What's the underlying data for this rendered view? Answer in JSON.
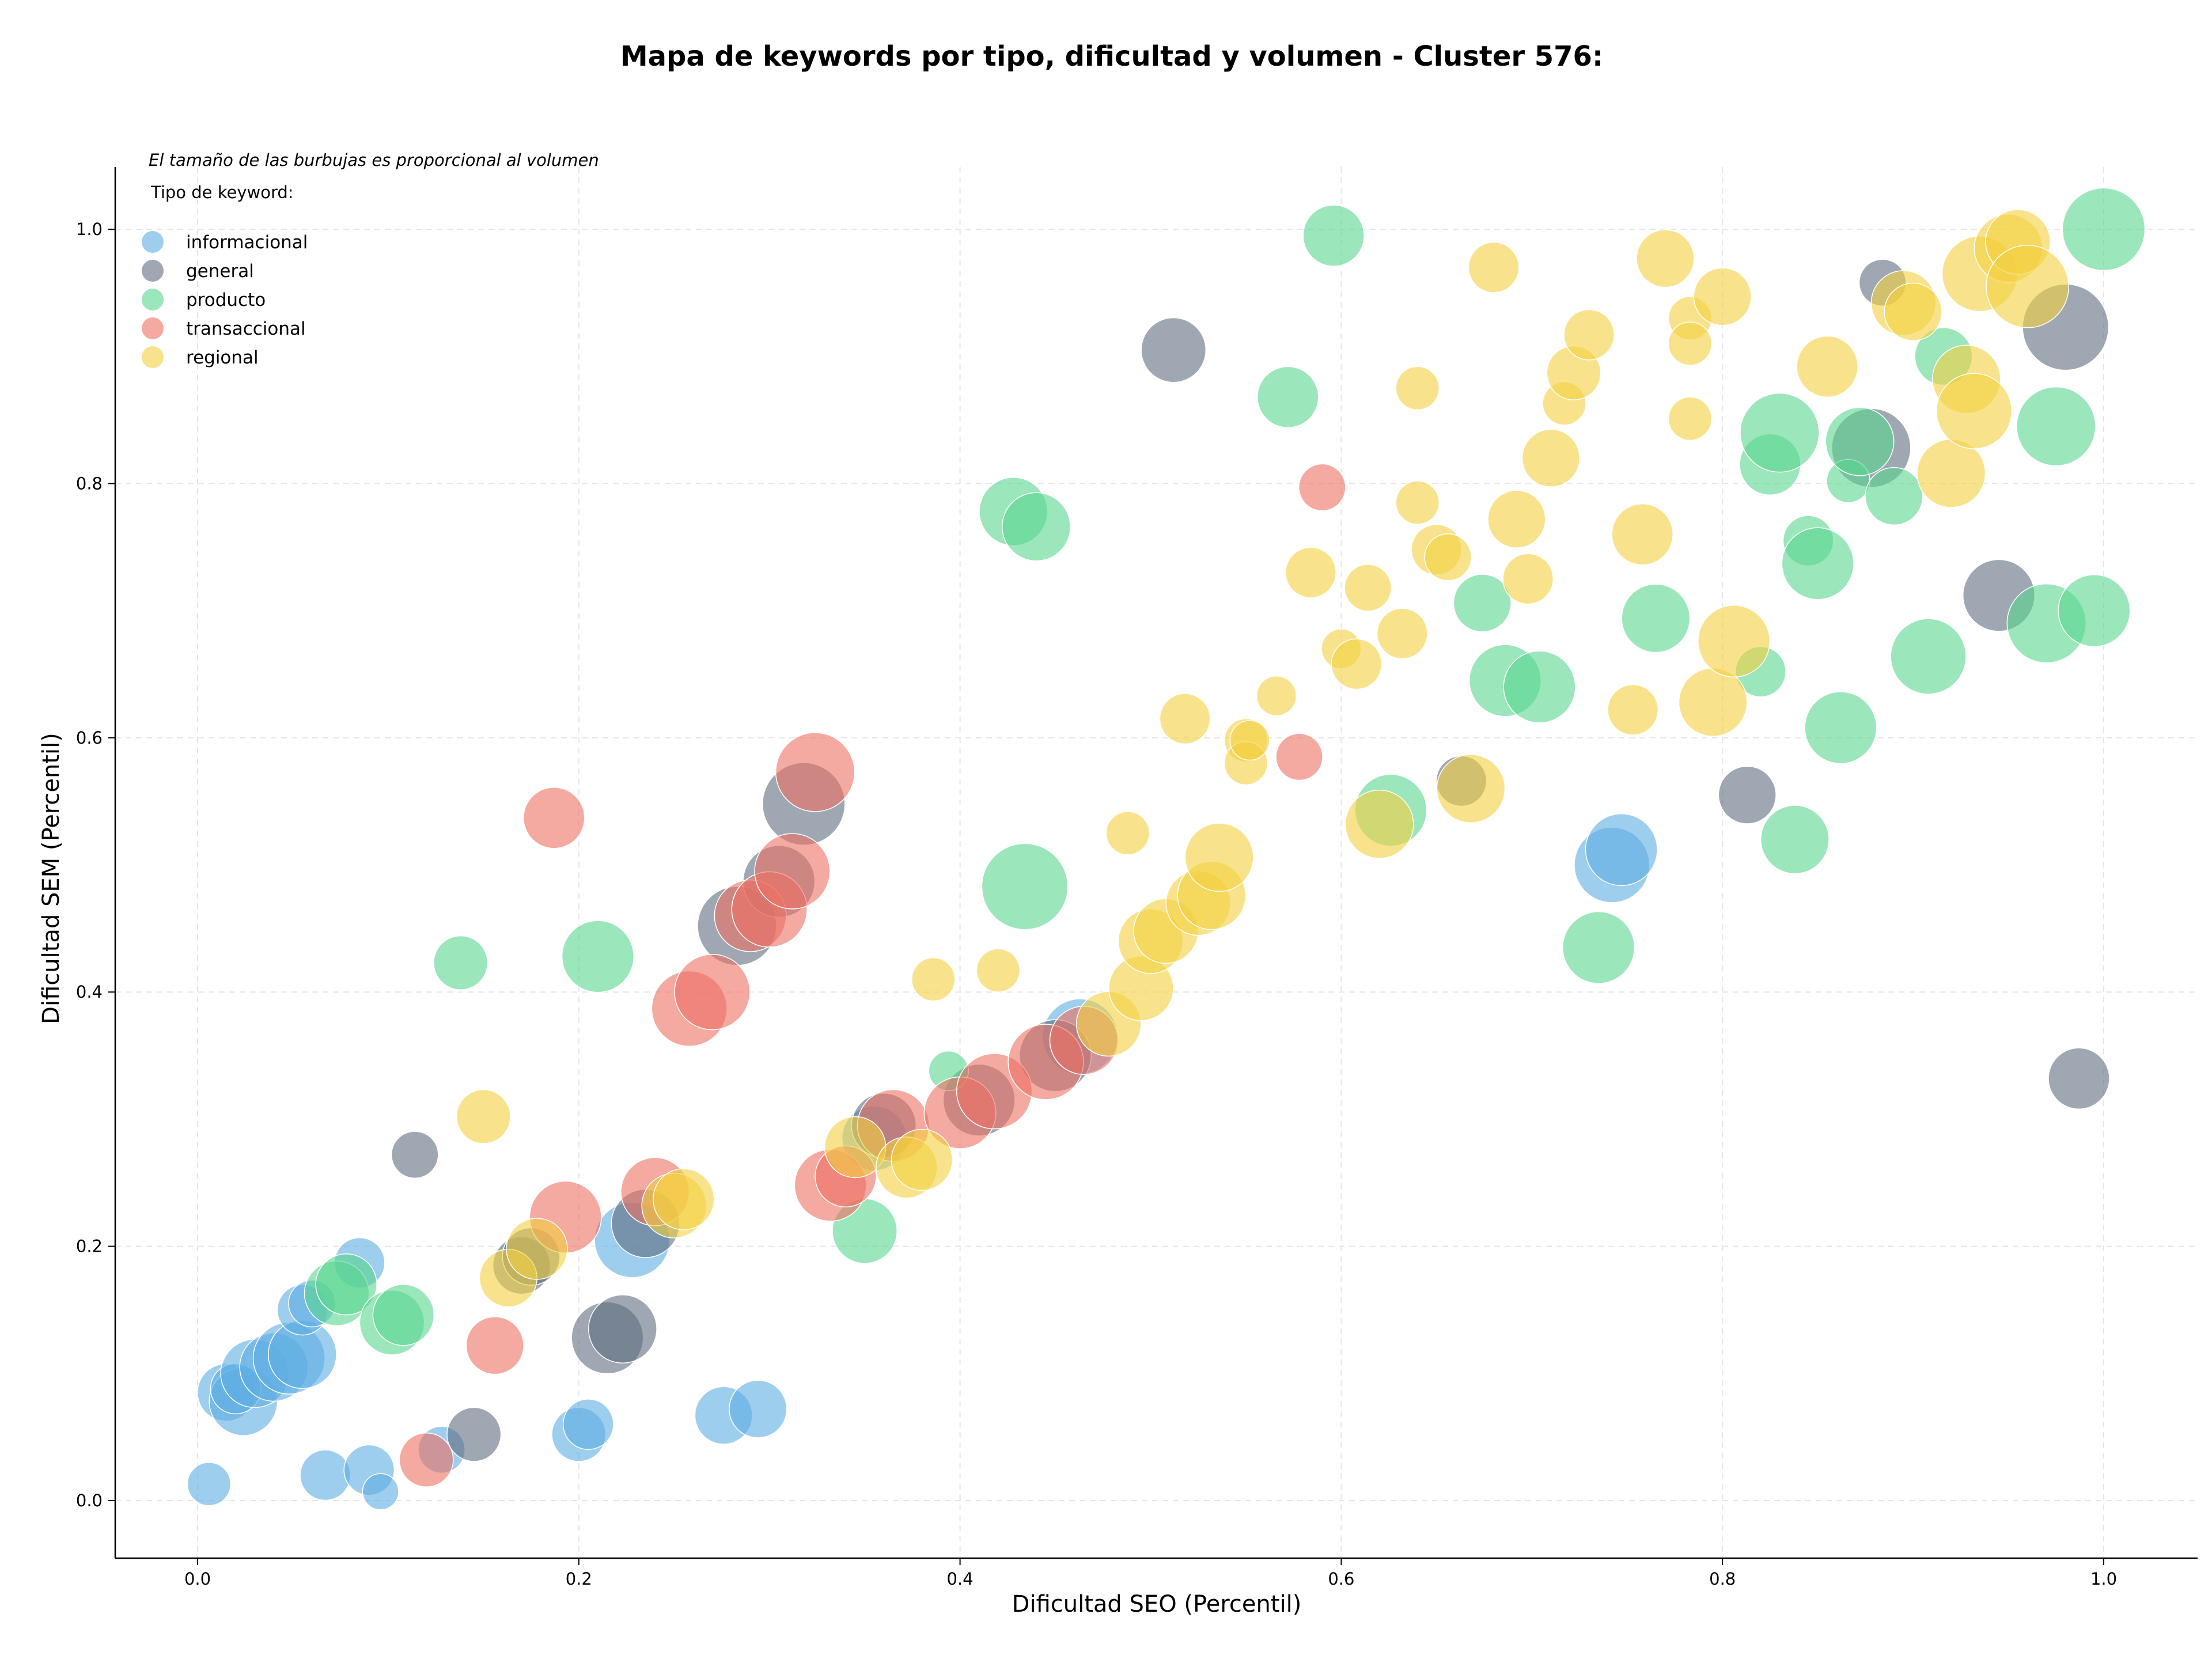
{
  "chart_data": {
    "type": "scatter",
    "title": "Mapa de keywords por tipo, dificultad y volumen - Cluster 576:",
    "xlabel": "Dificultad SEO (Percentil)",
    "ylabel": "Dificultad SEM (Percentil)",
    "xlim": [
      -0.04,
      1.05
    ],
    "ylim": [
      -0.04,
      1.05
    ],
    "xticks": [
      "0.0",
      "0.2",
      "0.4",
      "0.6",
      "0.8",
      "1.0"
    ],
    "yticks": [
      "0.0",
      "0.2",
      "0.4",
      "0.6",
      "0.8",
      "1.0"
    ],
    "grid": true,
    "legend_position": "top-left",
    "legend_note": "El tamaño de las burbujas es proporcional al volumen",
    "legend_title": "Tipo de keyword:",
    "series": [
      {
        "name": "informacional",
        "color": "#5dade2",
        "points": [
          [
            0.006,
            0.013,
            0.25
          ],
          [
            0.015,
            0.085,
            0.45
          ],
          [
            0.024,
            0.078,
            0.6
          ],
          [
            0.02,
            0.088,
            0.35
          ],
          [
            0.03,
            0.1,
            0.6
          ],
          [
            0.04,
            0.105,
            0.6
          ],
          [
            0.048,
            0.112,
            0.65
          ],
          [
            0.055,
            0.115,
            0.6
          ],
          [
            0.055,
            0.15,
            0.35
          ],
          [
            0.06,
            0.155,
            0.3
          ],
          [
            0.067,
            0.02,
            0.35
          ],
          [
            0.085,
            0.187,
            0.35
          ],
          [
            0.09,
            0.024,
            0.35
          ],
          [
            0.096,
            0.007,
            0.15
          ],
          [
            0.128,
            0.04,
            0.3
          ],
          [
            0.2,
            0.052,
            0.4
          ],
          [
            0.205,
            0.06,
            0.35
          ],
          [
            0.228,
            0.205,
            0.7
          ],
          [
            0.276,
            0.067,
            0.45
          ],
          [
            0.294,
            0.072,
            0.45
          ],
          [
            0.355,
            0.285,
            0.55
          ],
          [
            0.463,
            0.365,
            0.7
          ],
          [
            0.742,
            0.5,
            0.7
          ],
          [
            0.747,
            0.512,
            0.65
          ]
        ]
      },
      {
        "name": "general",
        "color": "#5d6d7e",
        "points": [
          [
            0.114,
            0.272,
            0.3
          ],
          [
            0.145,
            0.052,
            0.4
          ],
          [
            0.17,
            0.185,
            0.45
          ],
          [
            0.175,
            0.192,
            0.45
          ],
          [
            0.215,
            0.128,
            0.65
          ],
          [
            0.223,
            0.135,
            0.6
          ],
          [
            0.235,
            0.218,
            0.6
          ],
          [
            0.283,
            0.452,
            0.75
          ],
          [
            0.305,
            0.487,
            0.65
          ],
          [
            0.318,
            0.548,
            0.8
          ],
          [
            0.36,
            0.295,
            0.55
          ],
          [
            0.41,
            0.315,
            0.65
          ],
          [
            0.45,
            0.35,
            0.65
          ],
          [
            0.512,
            0.905,
            0.55
          ],
          [
            0.663,
            0.566,
            0.35
          ],
          [
            0.813,
            0.555,
            0.45
          ],
          [
            0.878,
            0.828,
            0.75
          ],
          [
            0.884,
            0.958,
            0.3
          ],
          [
            0.945,
            0.712,
            0.65
          ],
          [
            0.98,
            0.923,
            0.85
          ],
          [
            0.987,
            0.332,
            0.5
          ]
        ]
      },
      {
        "name": "producto",
        "color": "#58d68d",
        "points": [
          [
            0.073,
            0.163,
            0.55
          ],
          [
            0.078,
            0.17,
            0.5
          ],
          [
            0.102,
            0.14,
            0.55
          ],
          [
            0.108,
            0.146,
            0.5
          ],
          [
            0.138,
            0.423,
            0.4
          ],
          [
            0.21,
            0.428,
            0.65
          ],
          [
            0.35,
            0.212,
            0.55
          ],
          [
            0.394,
            0.338,
            0.2
          ],
          [
            0.428,
            0.778,
            0.6
          ],
          [
            0.434,
            0.483,
            0.85
          ],
          [
            0.44,
            0.766,
            0.6
          ],
          [
            0.572,
            0.868,
            0.5
          ],
          [
            0.596,
            0.995,
            0.5
          ],
          [
            0.626,
            0.543,
            0.65
          ],
          [
            0.674,
            0.706,
            0.45
          ],
          [
            0.686,
            0.645,
            0.65
          ],
          [
            0.704,
            0.64,
            0.65
          ],
          [
            0.735,
            0.435,
            0.65
          ],
          [
            0.765,
            0.694,
            0.6
          ],
          [
            0.82,
            0.652,
            0.35
          ],
          [
            0.825,
            0.815,
            0.5
          ],
          [
            0.83,
            0.84,
            0.75
          ],
          [
            0.838,
            0.52,
            0.6
          ],
          [
            0.845,
            0.755,
            0.35
          ],
          [
            0.85,
            0.737,
            0.65
          ],
          [
            0.862,
            0.608,
            0.65
          ],
          [
            0.866,
            0.802,
            0.25
          ],
          [
            0.872,
            0.833,
            0.6
          ],
          [
            0.89,
            0.79,
            0.45
          ],
          [
            0.908,
            0.664,
            0.7
          ],
          [
            0.916,
            0.9,
            0.45
          ],
          [
            0.97,
            0.69,
            0.75
          ],
          [
            0.975,
            0.845,
            0.75
          ],
          [
            0.995,
            0.7,
            0.65
          ],
          [
            1.0,
            1.0,
            0.8
          ]
        ]
      },
      {
        "name": "transaccional",
        "color": "#ec7063",
        "points": [
          [
            0.12,
            0.032,
            0.4
          ],
          [
            0.156,
            0.122,
            0.45
          ],
          [
            0.187,
            0.537,
            0.5
          ],
          [
            0.193,
            0.223,
            0.65
          ],
          [
            0.24,
            0.243,
            0.6
          ],
          [
            0.258,
            0.387,
            0.7
          ],
          [
            0.27,
            0.4,
            0.7
          ],
          [
            0.29,
            0.46,
            0.65
          ],
          [
            0.3,
            0.465,
            0.7
          ],
          [
            0.312,
            0.495,
            0.7
          ],
          [
            0.324,
            0.573,
            0.75
          ],
          [
            0.332,
            0.248,
            0.65
          ],
          [
            0.34,
            0.255,
            0.5
          ],
          [
            0.365,
            0.295,
            0.65
          ],
          [
            0.4,
            0.305,
            0.65
          ],
          [
            0.418,
            0.322,
            0.7
          ],
          [
            0.445,
            0.345,
            0.7
          ],
          [
            0.465,
            0.362,
            0.6
          ],
          [
            0.59,
            0.797,
            0.3
          ],
          [
            0.578,
            0.585,
            0.3
          ]
        ]
      },
      {
        "name": "regional",
        "color": "#f4d03f",
        "points": [
          [
            0.15,
            0.302,
            0.4
          ],
          [
            0.163,
            0.175,
            0.45
          ],
          [
            0.178,
            0.198,
            0.5
          ],
          [
            0.25,
            0.232,
            0.55
          ],
          [
            0.255,
            0.237,
            0.5
          ],
          [
            0.345,
            0.278,
            0.5
          ],
          [
            0.372,
            0.262,
            0.5
          ],
          [
            0.38,
            0.268,
            0.5
          ],
          [
            0.386,
            0.41,
            0.25
          ],
          [
            0.42,
            0.417,
            0.25
          ],
          [
            0.478,
            0.375,
            0.55
          ],
          [
            0.488,
            0.525,
            0.25
          ],
          [
            0.495,
            0.403,
            0.55
          ],
          [
            0.5,
            0.44,
            0.55
          ],
          [
            0.508,
            0.448,
            0.55
          ],
          [
            0.518,
            0.615,
            0.35
          ],
          [
            0.525,
            0.47,
            0.55
          ],
          [
            0.532,
            0.476,
            0.6
          ],
          [
            0.536,
            0.506,
            0.6
          ],
          [
            0.55,
            0.598,
            0.25
          ],
          [
            0.55,
            0.58,
            0.25
          ],
          [
            0.552,
            0.598,
            0.2
          ],
          [
            0.566,
            0.633,
            0.2
          ],
          [
            0.584,
            0.73,
            0.35
          ],
          [
            0.6,
            0.67,
            0.2
          ],
          [
            0.608,
            0.658,
            0.35
          ],
          [
            0.614,
            0.718,
            0.3
          ],
          [
            0.62,
            0.532,
            0.6
          ],
          [
            0.632,
            0.682,
            0.35
          ],
          [
            0.64,
            0.875,
            0.25
          ],
          [
            0.64,
            0.785,
            0.25
          ],
          [
            0.65,
            0.748,
            0.35
          ],
          [
            0.656,
            0.742,
            0.3
          ],
          [
            0.668,
            0.56,
            0.6
          ],
          [
            0.68,
            0.97,
            0.35
          ],
          [
            0.692,
            0.772,
            0.45
          ],
          [
            0.698,
            0.725,
            0.35
          ],
          [
            0.71,
            0.82,
            0.45
          ],
          [
            0.717,
            0.863,
            0.25
          ],
          [
            0.722,
            0.887,
            0.4
          ],
          [
            0.73,
            0.917,
            0.35
          ],
          [
            0.753,
            0.622,
            0.35
          ],
          [
            0.758,
            0.76,
            0.5
          ],
          [
            0.77,
            0.977,
            0.45
          ],
          [
            0.783,
            0.93,
            0.25
          ],
          [
            0.783,
            0.91,
            0.25
          ],
          [
            0.783,
            0.851,
            0.25
          ],
          [
            0.795,
            0.628,
            0.6
          ],
          [
            0.8,
            0.947,
            0.45
          ],
          [
            0.806,
            0.676,
            0.65
          ],
          [
            0.855,
            0.892,
            0.5
          ],
          [
            0.895,
            0.942,
            0.55
          ],
          [
            0.9,
            0.935,
            0.45
          ],
          [
            0.92,
            0.808,
            0.6
          ],
          [
            0.928,
            0.882,
            0.6
          ],
          [
            0.932,
            0.857,
            0.7
          ],
          [
            0.935,
            0.965,
            0.7
          ],
          [
            0.95,
            0.985,
            0.6
          ],
          [
            0.955,
            0.99,
            0.55
          ],
          [
            0.96,
            0.955,
            0.8
          ]
        ]
      }
    ]
  }
}
